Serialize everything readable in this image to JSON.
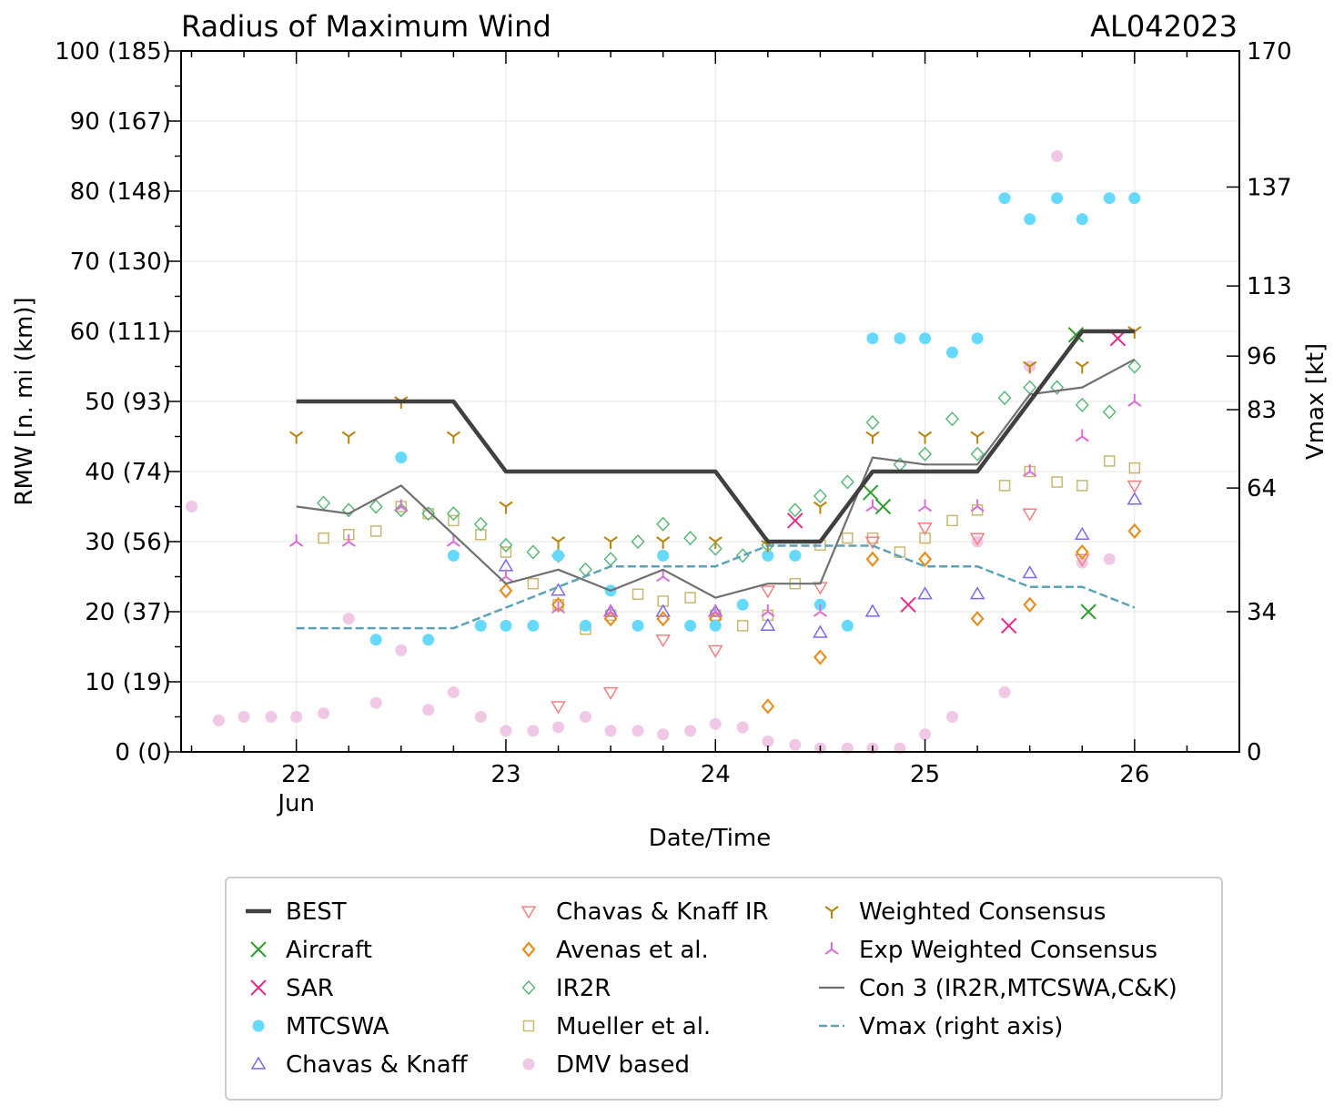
{
  "chart_data": {
    "type": "scatter",
    "title": "Radius of Maximum Wind",
    "storm_id": "AL042023",
    "xlabel": "Date/Time",
    "ylabel": "RMW [n. mi (km)]",
    "y2label": "Vmax [kt]",
    "xlim": [
      21.45,
      26.5
    ],
    "ylim": [
      0,
      100
    ],
    "y2lim": [
      0,
      170
    ],
    "x_ticks": [
      {
        "value": 22,
        "label": "22",
        "sublabel": "Jun"
      },
      {
        "value": 23,
        "label": "23",
        "sublabel": ""
      },
      {
        "value": 24,
        "label": "24",
        "sublabel": ""
      },
      {
        "value": 25,
        "label": "25",
        "sublabel": ""
      },
      {
        "value": 26,
        "label": "26",
        "sublabel": ""
      }
    ],
    "y_ticks": [
      {
        "value": 0,
        "label": "0 (0)"
      },
      {
        "value": 10,
        "label": "10 (19)"
      },
      {
        "value": 20,
        "label": "20 (37)"
      },
      {
        "value": 30,
        "label": "30 (56)"
      },
      {
        "value": 40,
        "label": "40 (74)"
      },
      {
        "value": 50,
        "label": "50 (93)"
      },
      {
        "value": 60,
        "label": "60 (111)"
      },
      {
        "value": 70,
        "label": "70 (130)"
      },
      {
        "value": 80,
        "label": "80 (148)"
      },
      {
        "value": 90,
        "label": "90 (167)"
      },
      {
        "value": 100,
        "label": "100 (185)"
      }
    ],
    "y2_ticks": [
      {
        "value": 0,
        "label": "0"
      },
      {
        "value": 34,
        "label": "34"
      },
      {
        "value": 64,
        "label": "64"
      },
      {
        "value": 83,
        "label": "83"
      },
      {
        "value": 96,
        "label": "96"
      },
      {
        "value": 113,
        "label": "113"
      },
      {
        "value": 137,
        "label": "137"
      },
      {
        "value": 170,
        "label": "170"
      }
    ],
    "series": [
      {
        "name": "BEST",
        "marker": "line",
        "color": "#404040",
        "x": [
          22.0,
          22.25,
          22.5,
          22.75,
          23.0,
          23.25,
          23.5,
          23.75,
          24.0,
          24.25,
          24.5,
          24.75,
          25.0,
          25.25,
          25.5,
          25.75,
          26.0
        ],
        "y": [
          50,
          50,
          50,
          50,
          40,
          40,
          40,
          40,
          40,
          30,
          30,
          40,
          40,
          40,
          50,
          60,
          60
        ]
      },
      {
        "name": "Aircraft",
        "marker": "x",
        "color": "#2ca02c",
        "x": [
          24.74,
          24.8,
          25.72,
          25.78
        ],
        "y": [
          37,
          35,
          59.5,
          20
        ]
      },
      {
        "name": "SAR",
        "marker": "x",
        "color": "#e7298a",
        "x": [
          24.38,
          24.92,
          25.4,
          25.92
        ],
        "y": [
          33,
          21,
          18,
          59
        ]
      },
      {
        "name": "MTCSWA",
        "marker": "circle",
        "color": "#66d9ff",
        "x": [
          22.38,
          22.5,
          22.63,
          22.75,
          22.88,
          23.0,
          23.13,
          23.25,
          23.38,
          23.5,
          23.63,
          23.75,
          23.88,
          24.0,
          24.13,
          24.25,
          24.38,
          24.5,
          24.63,
          24.75,
          24.88,
          25.0,
          25.13,
          25.25,
          25.38,
          25.5,
          25.63,
          25.75,
          25.88,
          26.0
        ],
        "y": [
          16,
          42,
          16,
          28,
          18,
          18,
          18,
          28,
          18,
          23,
          18,
          28,
          18,
          18,
          21,
          28,
          28,
          21,
          18,
          59,
          59,
          59,
          57,
          59,
          79,
          76,
          79,
          76,
          79,
          79
        ]
      },
      {
        "name": "Chavas & Knaff",
        "marker": "triangle-up",
        "color": "#7b68ee",
        "x": [
          23.0,
          23.25,
          23.5,
          23.75,
          24.0,
          24.25,
          24.5,
          24.75,
          25.0,
          25.25,
          25.5,
          25.75,
          26.0
        ],
        "y": [
          26.5,
          23,
          20,
          20,
          20,
          18,
          17,
          20,
          22.5,
          22.5,
          25.5,
          31,
          36
        ]
      },
      {
        "name": "Chavas & Knaff IR",
        "marker": "triangle-down",
        "color": "#f08080",
        "x": [
          23.25,
          23.5,
          23.75,
          24.0,
          24.25,
          24.5,
          24.75,
          25.0,
          25.25,
          25.5,
          25.75,
          26.0
        ],
        "y": [
          6.5,
          8.5,
          16,
          14.5,
          23,
          23.5,
          30,
          32,
          30.5,
          34,
          27.5,
          38
        ]
      },
      {
        "name": "Avenas et al.",
        "marker": "diamond",
        "color": "#e69020",
        "x": [
          23.0,
          23.25,
          23.5,
          23.75,
          24.0,
          24.25,
          24.5,
          24.75,
          25.0,
          25.25,
          25.5,
          25.75,
          26.0
        ],
        "y": [
          23,
          21,
          19,
          19,
          19,
          6.5,
          13.5,
          27.5,
          27.5,
          19,
          21,
          28.5,
          31.5
        ]
      },
      {
        "name": "IR2R",
        "marker": "diamond-open",
        "color": "#5cb87a",
        "x": [
          22.13,
          22.25,
          22.38,
          22.5,
          22.63,
          22.75,
          22.88,
          23.0,
          23.13,
          23.25,
          23.38,
          23.5,
          23.63,
          23.75,
          23.88,
          24.0,
          24.13,
          24.25,
          24.38,
          24.5,
          24.63,
          24.75,
          24.88,
          25.0,
          25.13,
          25.25,
          25.38,
          25.5,
          25.63,
          25.75,
          25.88,
          26.0
        ],
        "y": [
          35.5,
          34.5,
          35,
          34.5,
          34,
          34,
          32.5,
          29.5,
          28.5,
          28,
          26,
          27.5,
          30,
          32.5,
          30.5,
          29,
          28,
          29.5,
          34.5,
          36.5,
          38.5,
          47,
          41,
          42.5,
          47.5,
          42.5,
          50.5,
          52,
          52,
          49.5,
          48.5,
          55
        ]
      },
      {
        "name": "Mueller et al.",
        "marker": "square",
        "color": "#c8b870",
        "x": [
          22.13,
          22.25,
          22.38,
          22.5,
          22.63,
          22.75,
          22.88,
          23.0,
          23.13,
          23.25,
          23.38,
          23.5,
          23.63,
          23.75,
          23.88,
          24.0,
          24.13,
          24.25,
          24.38,
          24.5,
          24.63,
          24.75,
          24.88,
          25.0,
          25.13,
          25.25,
          25.38,
          25.5,
          25.63,
          25.75,
          25.88,
          26.0
        ],
        "y": [
          30.5,
          31,
          31.5,
          35,
          34,
          33,
          31,
          28.5,
          24,
          21,
          17.5,
          19.5,
          22.5,
          21.5,
          22,
          19.5,
          18,
          19.5,
          24,
          29.5,
          30.5,
          30.5,
          28.5,
          30.5,
          33,
          34.5,
          38,
          40,
          38.5,
          38,
          41.5,
          40.5
        ]
      },
      {
        "name": "DMV based",
        "marker": "circle",
        "color": "#f0c8e6",
        "x": [
          21.5,
          21.63,
          21.75,
          21.88,
          22.0,
          22.13,
          22.25,
          22.38,
          22.5,
          22.63,
          22.75,
          22.88,
          23.0,
          23.13,
          23.25,
          23.38,
          23.5,
          23.63,
          23.75,
          23.88,
          24.0,
          24.13,
          24.25,
          24.38,
          24.5,
          24.63,
          24.75,
          24.88,
          25.0,
          25.13,
          25.25,
          25.38,
          25.5,
          25.63,
          25.75,
          25.88
        ],
        "y": [
          35,
          4.5,
          5,
          5,
          5,
          5.5,
          19,
          7,
          14.5,
          6,
          8.5,
          5,
          3,
          3,
          3.5,
          5,
          3,
          3,
          2.5,
          3,
          4,
          3.5,
          1.5,
          1,
          0.5,
          0.5,
          0.5,
          0.5,
          2.5,
          5,
          30,
          8.5,
          55,
          85,
          27,
          27.5
        ]
      },
      {
        "name": "Weighted Consensus",
        "marker": "tri-down",
        "color": "#b8860b",
        "x": [
          22.0,
          22.25,
          22.5,
          22.75,
          23.0,
          23.25,
          23.5,
          23.75,
          24.0,
          24.25,
          24.5,
          24.75,
          25.0,
          25.25,
          25.5,
          25.75,
          26.0
        ],
        "y": [
          45,
          45,
          50,
          45,
          35,
          30,
          30,
          30,
          30,
          29.5,
          35,
          45,
          45,
          45,
          55,
          55,
          60
        ]
      },
      {
        "name": "Exp Weighted Consensus",
        "marker": "tri-up",
        "color": "#da70d6",
        "x": [
          22.0,
          22.25,
          22.5,
          22.75,
          23.0,
          23.25,
          23.5,
          23.75,
          24.0,
          24.25,
          24.5,
          24.75,
          25.0,
          25.25,
          25.5,
          25.75,
          26.0
        ],
        "y": [
          30,
          30,
          35,
          30,
          25,
          20.5,
          20,
          25,
          20,
          20,
          20,
          35,
          35,
          35,
          40,
          45,
          50
        ]
      },
      {
        "name": "Con 3 (IR2R,MTCSWA,C&K)",
        "marker": "line",
        "color": "#707070",
        "x": [
          22.0,
          22.25,
          22.5,
          22.75,
          23.0,
          23.25,
          23.5,
          23.75,
          24.0,
          24.25,
          24.5,
          24.75,
          25.0,
          25.25,
          25.5,
          25.75,
          26.0
        ],
        "y": [
          35,
          34,
          38,
          31,
          24,
          26,
          23,
          26,
          22,
          24,
          24,
          42,
          41,
          41,
          51,
          52,
          56
        ]
      },
      {
        "name": "Vmax (right axis)",
        "marker": "dashed",
        "color": "#5ba3b8",
        "axis": "right",
        "x": [
          22.0,
          22.25,
          22.5,
          22.75,
          23.0,
          23.25,
          23.5,
          23.75,
          24.0,
          24.25,
          24.5,
          24.75,
          25.0,
          25.25,
          25.5,
          25.75,
          26.0
        ],
        "y": [
          30,
          30,
          30,
          30,
          35,
          40,
          45,
          45,
          45,
          50,
          50,
          50,
          45,
          45,
          40,
          40,
          35
        ]
      }
    ]
  }
}
